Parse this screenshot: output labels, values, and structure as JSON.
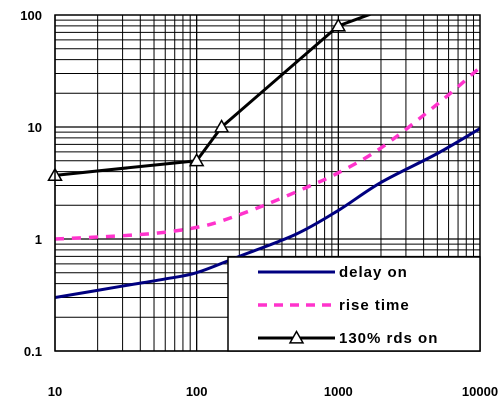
{
  "chart_data": {
    "type": "line",
    "title": "",
    "xlabel": "",
    "ylabel": "",
    "x_scale": "log",
    "y_scale": "log",
    "xlim": [
      10,
      10000
    ],
    "ylim": [
      0.1,
      100
    ],
    "grid": true,
    "legend_position": "bottom-right",
    "x_ticks": [
      "10",
      "100",
      "1000",
      "10000"
    ],
    "y_ticks": [
      "100",
      "10",
      "1",
      "0.1"
    ],
    "series": [
      {
        "name": "delay on",
        "color": "#000080",
        "style": "solid",
        "marker": "none",
        "x": [
          10,
          30,
          60,
          100,
          200,
          500,
          1000,
          2000,
          5000,
          10000
        ],
        "y": [
          0.3,
          0.38,
          0.44,
          0.5,
          0.7,
          1.1,
          1.8,
          3.2,
          5.8,
          9.7
        ]
      },
      {
        "name": "rise time",
        "color": "#ff33cc",
        "style": "dashed",
        "marker": "none",
        "x": [
          10,
          30,
          60,
          100,
          150,
          300,
          600,
          1000,
          2000,
          5000,
          10000
        ],
        "y": [
          1.0,
          1.07,
          1.15,
          1.27,
          1.45,
          2.0,
          2.9,
          3.9,
          6.5,
          16,
          34
        ]
      },
      {
        "name": "130% rds on",
        "color": "#000000",
        "style": "solid",
        "marker": "triangle",
        "x": [
          10,
          100,
          150,
          1000,
          2000
        ],
        "y": [
          3.7,
          5.0,
          10.0,
          80,
          110
        ],
        "marker_x": [
          10,
          100,
          150,
          1000
        ]
      }
    ]
  }
}
